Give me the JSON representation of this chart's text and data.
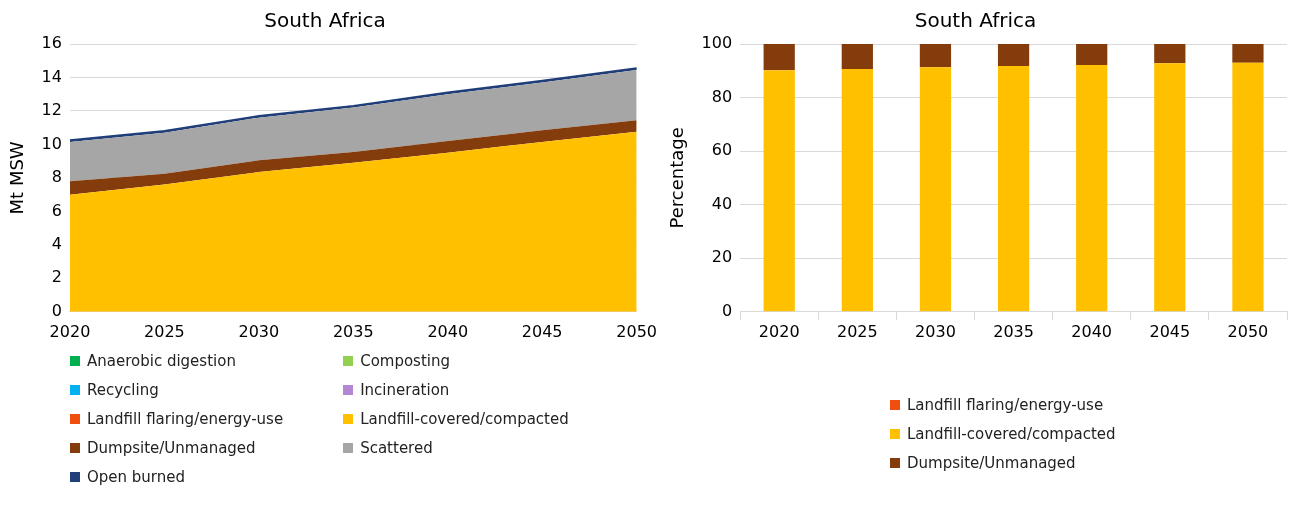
{
  "chart_data": [
    {
      "type": "area",
      "title": "South Africa",
      "ylabel": "Mt MSW",
      "stacked": true,
      "categories": [
        "2020",
        "2025",
        "2030",
        "2035",
        "2040",
        "2045",
        "2050"
      ],
      "ylim": [
        0,
        16
      ],
      "yticks": [
        0,
        2,
        4,
        6,
        8,
        10,
        12,
        14,
        16
      ],
      "grid": "y",
      "legend": "bottom",
      "series": [
        {
          "name": "Anaerobic digestion",
          "color": "#00b050",
          "values": [
            null,
            null,
            null,
            null,
            null,
            null,
            null
          ]
        },
        {
          "name": "Composting",
          "color": "#92d050",
          "values": [
            null,
            null,
            null,
            null,
            null,
            null,
            null
          ]
        },
        {
          "name": "Recycling",
          "color": "#00b0f0",
          "values": [
            null,
            null,
            null,
            null,
            null,
            null,
            null
          ]
        },
        {
          "name": "Incineration",
          "color": "#b387d6",
          "values": [
            null,
            null,
            null,
            null,
            null,
            null,
            null
          ]
        },
        {
          "name": "Landfill flaring/energy-use",
          "color": "#f04e0f",
          "values": [
            null,
            null,
            null,
            null,
            null,
            null,
            null
          ]
        },
        {
          "name": "Landfill-covered/compacted",
          "color": "#ffc000",
          "values": [
            7.0,
            7.6,
            8.35,
            8.9,
            9.5,
            10.15,
            10.75
          ]
        },
        {
          "name": "Dumpsite/Unmanaged",
          "color": "#843c0c",
          "values": [
            0.8,
            0.65,
            0.7,
            0.65,
            0.7,
            0.7,
            0.7
          ]
        },
        {
          "name": "Scattered",
          "color": "#a6a6a6",
          "values": [
            2.35,
            2.45,
            2.55,
            2.65,
            2.8,
            2.85,
            3.0
          ]
        },
        {
          "name": "Open burned",
          "color": "#203f7a",
          "values": [
            0.1,
            0.1,
            0.1,
            0.1,
            0.1,
            0.1,
            0.1
          ]
        }
      ]
    },
    {
      "type": "bar",
      "title": "South Africa",
      "ylabel": "Percentage",
      "stacked": true,
      "categories": [
        "2020",
        "2025",
        "2030",
        "2035",
        "2040",
        "2045",
        "2050"
      ],
      "ylim": [
        0,
        100
      ],
      "yticks": [
        0,
        20,
        40,
        60,
        80,
        100
      ],
      "grid": "y",
      "legend": "bottom",
      "series": [
        {
          "name": "Landfill flaring/energy-use",
          "color": "#f04e0f",
          "values": [
            0,
            0,
            0,
            0,
            0,
            0,
            0
          ]
        },
        {
          "name": "Landfill-covered/compacted",
          "color": "#ffc000",
          "values": [
            90.2,
            90.7,
            91.3,
            91.8,
            92.2,
            92.8,
            93.0
          ]
        },
        {
          "name": "Dumpsite/Unmanaged",
          "color": "#843c0c",
          "values": [
            9.8,
            9.3,
            8.7,
            8.2,
            7.8,
            7.2,
            7.0
          ]
        }
      ]
    }
  ]
}
